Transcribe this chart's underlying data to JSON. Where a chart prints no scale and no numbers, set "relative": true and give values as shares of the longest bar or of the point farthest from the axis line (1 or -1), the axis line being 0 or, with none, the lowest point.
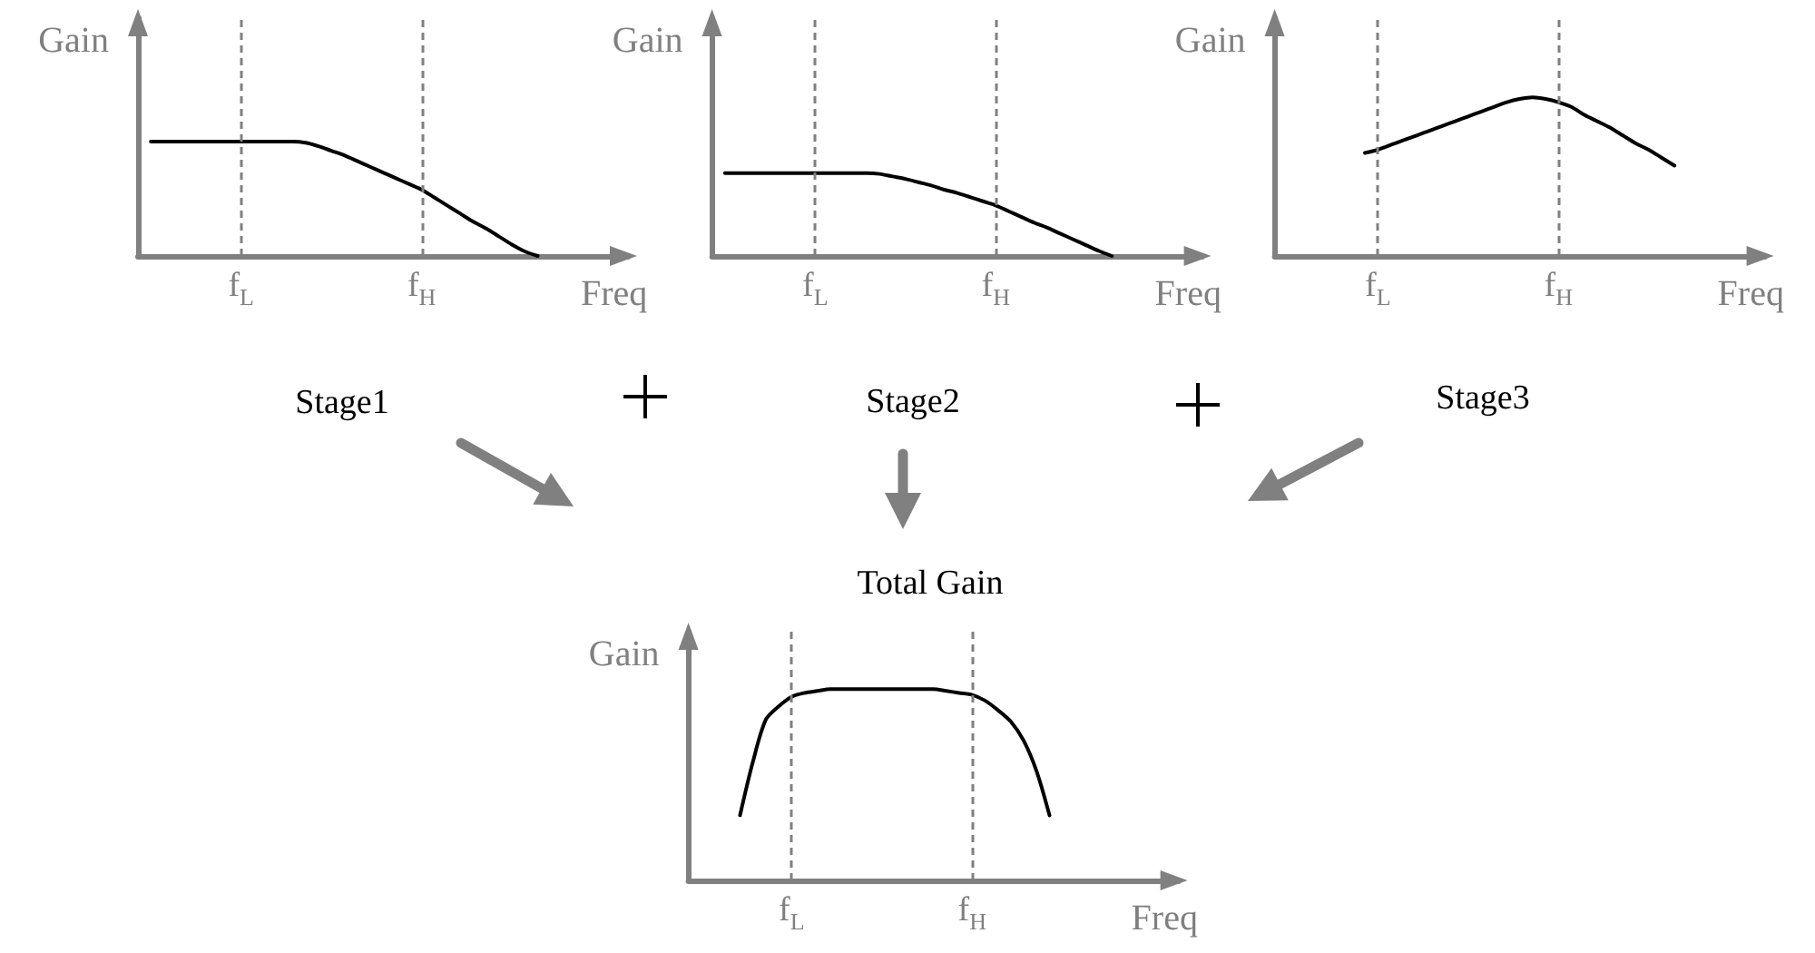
{
  "chart_data": [
    {
      "type": "line",
      "title": "Stage1",
      "xlabel": "Freq",
      "ylabel": "Gain",
      "relative": true,
      "marker": "none",
      "tick_labels": "x",
      "categories": [
        null,
        null,
        null,
        null,
        null,
        null,
        null,
        null,
        "f$_{L}$",
        null,
        null,
        null,
        null,
        null,
        null,
        null,
        null,
        null,
        null,
        null,
        null,
        null,
        "f$_{H}$",
        null,
        null,
        null,
        null,
        null,
        null,
        null,
        null,
        null,
        null,
        null,
        null,
        null,
        null,
        null,
        null
      ],
      "series": [
        {
          "color": "#000000",
          "values": [
            null,
            1,
            1,
            1,
            1,
            1,
            1,
            1,
            1,
            1,
            1,
            1,
            1,
            0.99,
            0.96,
            0.92,
            0.88,
            0.83,
            0.78,
            0.73,
            0.68,
            0.63,
            0.58,
            0.51,
            0.44,
            0.37,
            0.3,
            0.24,
            0.17,
            0.1,
            0.04,
            0,
            null,
            null,
            null,
            null,
            null,
            null,
            null
          ]
        }
      ],
      "ref_lines": [
        {
          "axis": "x",
          "value": "f$_{L}$",
          "color": "#808080",
          "line_style": "dashed"
        },
        {
          "axis": "x",
          "value": "f$_{H}$",
          "color": "#808080",
          "line_style": "dashed"
        }
      ]
    },
    {
      "type": "line",
      "title": "Stage2",
      "xlabel": "Freq",
      "ylabel": "Gain",
      "relative": true,
      "marker": "none",
      "tick_labels": "x",
      "categories": [
        null,
        null,
        null,
        null,
        null,
        null,
        null,
        null,
        "f$_{L}$",
        null,
        null,
        null,
        null,
        null,
        null,
        null,
        null,
        null,
        null,
        null,
        null,
        null,
        "f$_{H}$",
        null,
        null,
        null,
        null,
        null,
        null,
        null,
        null,
        null,
        null,
        null,
        null,
        null,
        null,
        null,
        null
      ],
      "series": [
        {
          "color": "#000000",
          "values": [
            null,
            1,
            1,
            1,
            1,
            1,
            1,
            1,
            1,
            1,
            1,
            1,
            1,
            0.99,
            0.96,
            0.93,
            0.89,
            0.85,
            0.8,
            0.76,
            0.71,
            0.66,
            0.61,
            0.54,
            0.47,
            0.4,
            0.34,
            0.27,
            0.2,
            0.13,
            0.06,
            0,
            null,
            null,
            null,
            null,
            null,
            null,
            null
          ]
        }
      ],
      "ref_lines": [
        {
          "axis": "x",
          "value": "f$_{L}$",
          "color": "#808080",
          "line_style": "dashed"
        },
        {
          "axis": "x",
          "value": "f$_{H}$",
          "color": "#808080",
          "line_style": "dashed"
        }
      ]
    },
    {
      "type": "line",
      "title": "Stage3",
      "xlabel": "Freq",
      "ylabel": "Gain",
      "relative": true,
      "marker": "none",
      "tick_labels": "x",
      "categories": [
        null,
        null,
        null,
        null,
        null,
        null,
        null,
        null,
        "f$_{L}$",
        null,
        null,
        null,
        null,
        null,
        null,
        null,
        null,
        null,
        null,
        null,
        null,
        null,
        "f$_{H}$",
        null,
        null,
        null,
        null,
        null,
        null,
        null,
        null,
        null,
        null,
        null,
        null,
        null,
        null,
        null,
        null
      ],
      "series": [
        {
          "color": "#000000",
          "values": [
            null,
            null,
            null,
            null,
            null,
            null,
            null,
            0.65,
            0.67,
            0.7,
            0.73,
            0.76,
            0.79,
            0.82,
            0.85,
            0.88,
            0.91,
            0.94,
            0.97,
            0.99,
            1,
            0.99,
            0.97,
            0.94,
            0.89,
            0.85,
            0.81,
            0.76,
            0.71,
            0.67,
            0.62,
            0.57,
            null,
            null,
            null,
            null,
            null,
            null,
            null
          ]
        }
      ],
      "ref_lines": [
        {
          "axis": "x",
          "value": "f$_{L}$",
          "color": "#808080",
          "line_style": "dashed"
        },
        {
          "axis": "x",
          "value": "f$_{H}$",
          "color": "#808080",
          "line_style": "dashed"
        }
      ]
    },
    {
      "type": "line",
      "title": "Total Gain",
      "xlabel": "Freq",
      "ylabel": "Gain",
      "relative": true,
      "marker": "none",
      "tick_labels": "x",
      "categories": [
        null,
        null,
        null,
        null,
        null,
        null,
        null,
        null,
        "f$_{L}$",
        null,
        null,
        null,
        null,
        null,
        null,
        null,
        null,
        null,
        null,
        null,
        null,
        null,
        "f$_{H}$",
        null,
        null,
        null,
        null,
        null,
        null,
        null,
        null,
        null,
        null,
        null,
        null,
        null,
        null,
        null,
        null
      ],
      "series": [
        {
          "color": "#000000",
          "values": [
            null,
            null,
            null,
            null,
            0.34,
            0.62,
            0.84,
            0.91,
            0.96,
            0.98,
            0.99,
            1,
            1,
            1,
            1,
            1,
            1,
            1,
            1,
            1,
            0.99,
            0.98,
            0.97,
            0.94,
            0.89,
            0.83,
            0.73,
            0.57,
            0.34,
            null,
            null,
            null,
            null,
            null,
            null,
            null,
            null,
            null,
            null
          ]
        }
      ],
      "ref_lines": [
        {
          "axis": "x",
          "value": "f$_{L}$",
          "color": "#808080",
          "line_style": "dashed"
        },
        {
          "axis": "x",
          "value": "f$_{H}$",
          "color": "#808080",
          "line_style": "dashed"
        }
      ]
    }
  ]
}
